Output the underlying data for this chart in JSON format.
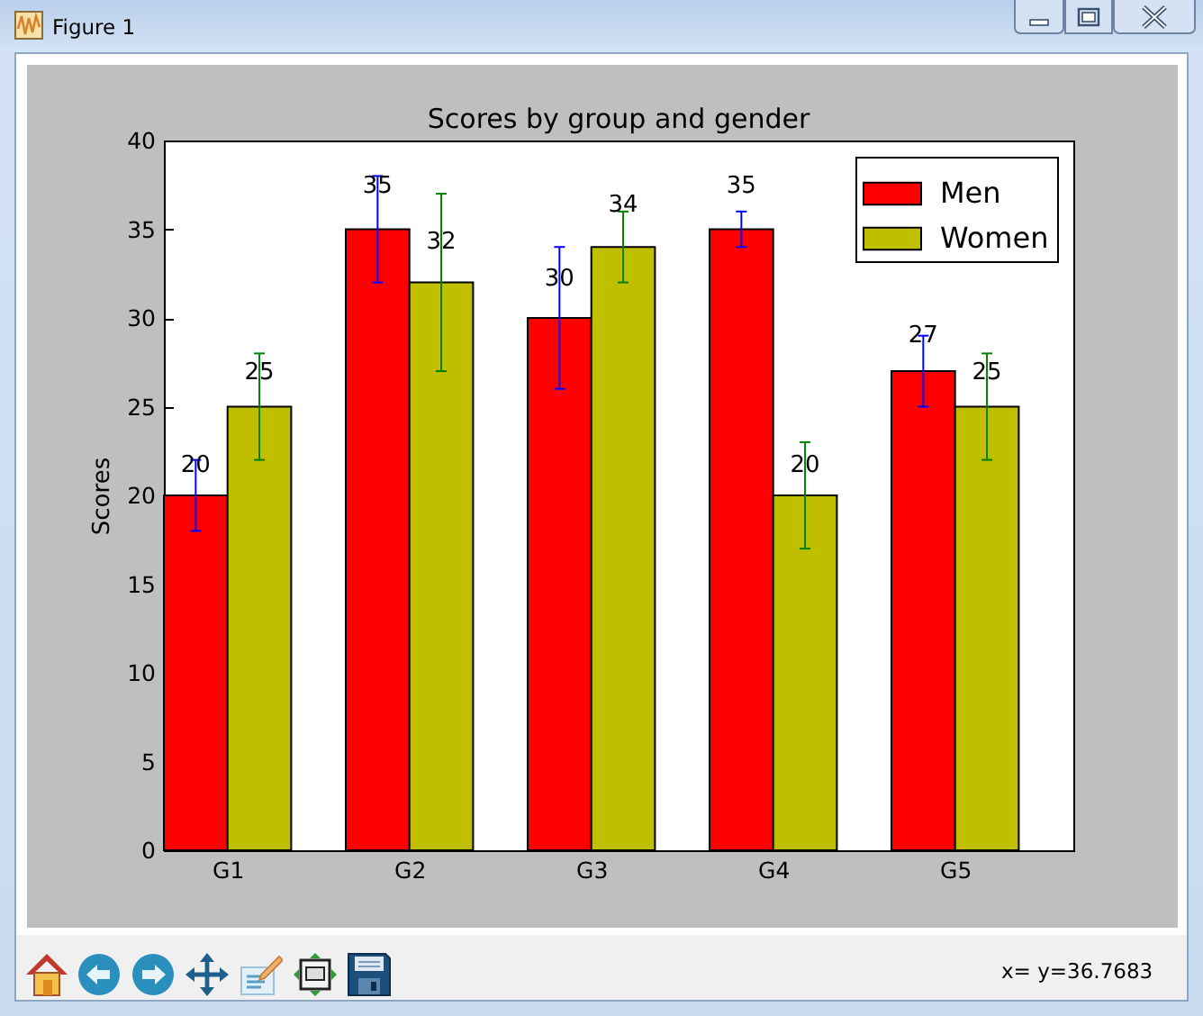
{
  "chart_data": {
    "type": "bar",
    "title": "Scores by group and gender",
    "ylabel": "Scores",
    "categories": [
      "G1",
      "G2",
      "G3",
      "G4",
      "G5"
    ],
    "series": [
      {
        "name": "Men",
        "color": "#ff0000",
        "values": [
          20,
          35,
          30,
          35,
          27
        ],
        "errors": [
          2,
          3,
          4,
          1,
          2
        ]
      },
      {
        "name": "Women",
        "color": "#bfbf00",
        "values": [
          25,
          32,
          34,
          20,
          25
        ],
        "errors": [
          3,
          5,
          2,
          3,
          3
        ]
      }
    ],
    "ylim": [
      0,
      40
    ],
    "yticks": [
      0,
      5,
      10,
      15,
      20,
      25,
      30,
      35,
      40
    ],
    "data_labels": true,
    "legend": "top right",
    "annotations": [
      "Figure 1",
      "x= y=36.7683"
    ]
  }
}
